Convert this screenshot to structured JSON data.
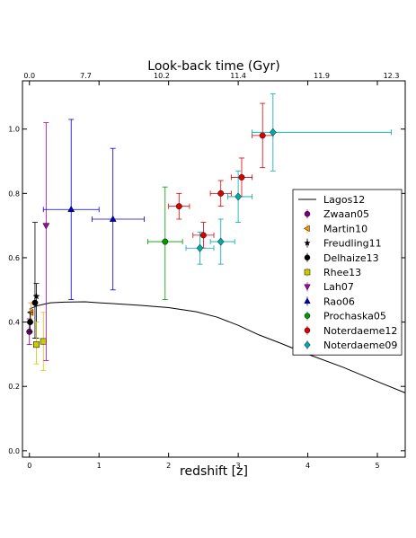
{
  "chart_data": {
    "type": "scatter",
    "xlabel": "redshift [z]",
    "ylabel": "",
    "top_xlabel": "Look-back time (Gyr)",
    "xlim": [
      -0.1,
      5.4
    ],
    "ylim": [
      -0.02,
      1.15
    ],
    "x_ticks": [
      0,
      1,
      2,
      3,
      4,
      5
    ],
    "x_tick_labels": [
      "0",
      "1",
      "2",
      "3",
      "4",
      "5"
    ],
    "y_ticks": [
      0.0,
      0.2,
      0.4,
      0.6,
      0.8,
      1.0
    ],
    "y_tick_labels": [
      "0.0",
      "0.2",
      "0.4",
      "0.6",
      "0.8",
      "1.0"
    ],
    "top_ticks": [
      0.0,
      0.81,
      1.9,
      3.0,
      4.2,
      5.2
    ],
    "top_tick_labels": [
      "0.0",
      "7.7",
      "10.2",
      "11.4",
      "11.9",
      "12.3"
    ],
    "grid": false,
    "legend_position": "right",
    "model": {
      "name": "Lagos12",
      "color": "#000000",
      "x": [
        0.0,
        0.1,
        0.2,
        0.3,
        0.5,
        0.8,
        1.0,
        1.3,
        1.6,
        2.0,
        2.4,
        2.7,
        3.0,
        3.3,
        3.6,
        4.0,
        4.5,
        5.0,
        5.4
      ],
      "y": [
        0.44,
        0.45,
        0.455,
        0.46,
        0.462,
        0.463,
        0.46,
        0.456,
        0.452,
        0.445,
        0.432,
        0.415,
        0.39,
        0.36,
        0.335,
        0.3,
        0.26,
        0.215,
        0.18
      ]
    },
    "series": [
      {
        "name": "Zwaan05",
        "color": "#7a007a",
        "marker": "circle",
        "points": [
          {
            "x": 0.0,
            "y": 0.37,
            "ylo": 0.33,
            "yhi": 0.41,
            "xlo": 0.0,
            "xhi": 0.0
          }
        ]
      },
      {
        "name": "Martin10",
        "color": "#ff9900",
        "marker": "triangle-left",
        "points": [
          {
            "x": 0.02,
            "y": 0.43,
            "ylo": 0.4,
            "yhi": 0.46,
            "xlo": 0.02,
            "xhi": 0.02
          }
        ]
      },
      {
        "name": "Freudling11",
        "color": "#000000",
        "marker": "star",
        "points": [
          {
            "x": 0.1,
            "y": 0.48,
            "ylo": 0.35,
            "yhi": 0.52,
            "xlo": 0.1,
            "xhi": 0.1
          }
        ]
      },
      {
        "name": "Delhaize13",
        "color": "#000000",
        "marker": "circle",
        "points": [
          {
            "x": 0.01,
            "y": 0.4,
            "ylo": 0.37,
            "yhi": 0.43,
            "xlo": 0.01,
            "xhi": 0.01
          },
          {
            "x": 0.08,
            "y": 0.46,
            "ylo": 0.35,
            "yhi": 0.71,
            "xlo": 0.08,
            "xhi": 0.08
          }
        ]
      },
      {
        "name": "Rhee13",
        "color": "#cccc00",
        "marker": "square",
        "points": [
          {
            "x": 0.1,
            "y": 0.33,
            "ylo": 0.27,
            "yhi": 0.4,
            "xlo": 0.1,
            "xhi": 0.1
          },
          {
            "x": 0.2,
            "y": 0.34,
            "ylo": 0.25,
            "yhi": 0.43,
            "xlo": 0.2,
            "xhi": 0.2
          }
        ]
      },
      {
        "name": "Lah07",
        "color": "#aa00aa",
        "marker": "triangle-down",
        "points": [
          {
            "x": 0.24,
            "y": 0.7,
            "ylo": 0.28,
            "yhi": 1.02,
            "xlo": 0.24,
            "xhi": 0.24
          }
        ]
      },
      {
        "name": "Rao06",
        "color": "#0000cc",
        "marker": "triangle-up",
        "points": [
          {
            "x": 0.6,
            "y": 0.75,
            "ylo": 0.47,
            "yhi": 1.03,
            "xlo": 0.2,
            "xhi": 1.0
          },
          {
            "x": 1.2,
            "y": 0.72,
            "ylo": 0.5,
            "yhi": 0.94,
            "xlo": 0.9,
            "xhi": 1.65
          }
        ]
      },
      {
        "name": "Prochaska05",
        "color": "#009900",
        "marker": "circle",
        "points": [
          {
            "x": 1.95,
            "y": 0.65,
            "ylo": 0.47,
            "yhi": 0.82,
            "xlo": 1.7,
            "xhi": 2.2
          }
        ]
      },
      {
        "name": "Noterdaeme12",
        "color": "#dd0000",
        "marker": "circle",
        "points": [
          {
            "x": 2.15,
            "y": 0.76,
            "ylo": 0.72,
            "yhi": 0.8,
            "xlo": 2.0,
            "xhi": 2.3
          },
          {
            "x": 2.5,
            "y": 0.67,
            "ylo": 0.63,
            "yhi": 0.71,
            "xlo": 2.35,
            "xhi": 2.65
          },
          {
            "x": 2.75,
            "y": 0.8,
            "ylo": 0.76,
            "yhi": 0.84,
            "xlo": 2.6,
            "xhi": 2.9
          },
          {
            "x": 3.05,
            "y": 0.85,
            "ylo": 0.79,
            "yhi": 0.91,
            "xlo": 2.9,
            "xhi": 3.2
          },
          {
            "x": 3.35,
            "y": 0.98,
            "ylo": 0.88,
            "yhi": 1.08,
            "xlo": 3.2,
            "xhi": 3.5
          }
        ]
      },
      {
        "name": "Noterdaeme09",
        "color": "#00aaaa",
        "marker": "diamond",
        "points": [
          {
            "x": 2.45,
            "y": 0.63,
            "ylo": 0.58,
            "yhi": 0.68,
            "xlo": 2.25,
            "xhi": 2.65
          },
          {
            "x": 2.75,
            "y": 0.65,
            "ylo": 0.58,
            "yhi": 0.72,
            "xlo": 2.6,
            "xhi": 2.95
          },
          {
            "x": 3.0,
            "y": 0.79,
            "ylo": 0.71,
            "yhi": 0.87,
            "xlo": 2.85,
            "xhi": 3.2
          },
          {
            "x": 3.5,
            "y": 0.99,
            "ylo": 0.87,
            "yhi": 1.11,
            "xlo": 3.2,
            "xhi": 5.2
          }
        ]
      }
    ]
  }
}
